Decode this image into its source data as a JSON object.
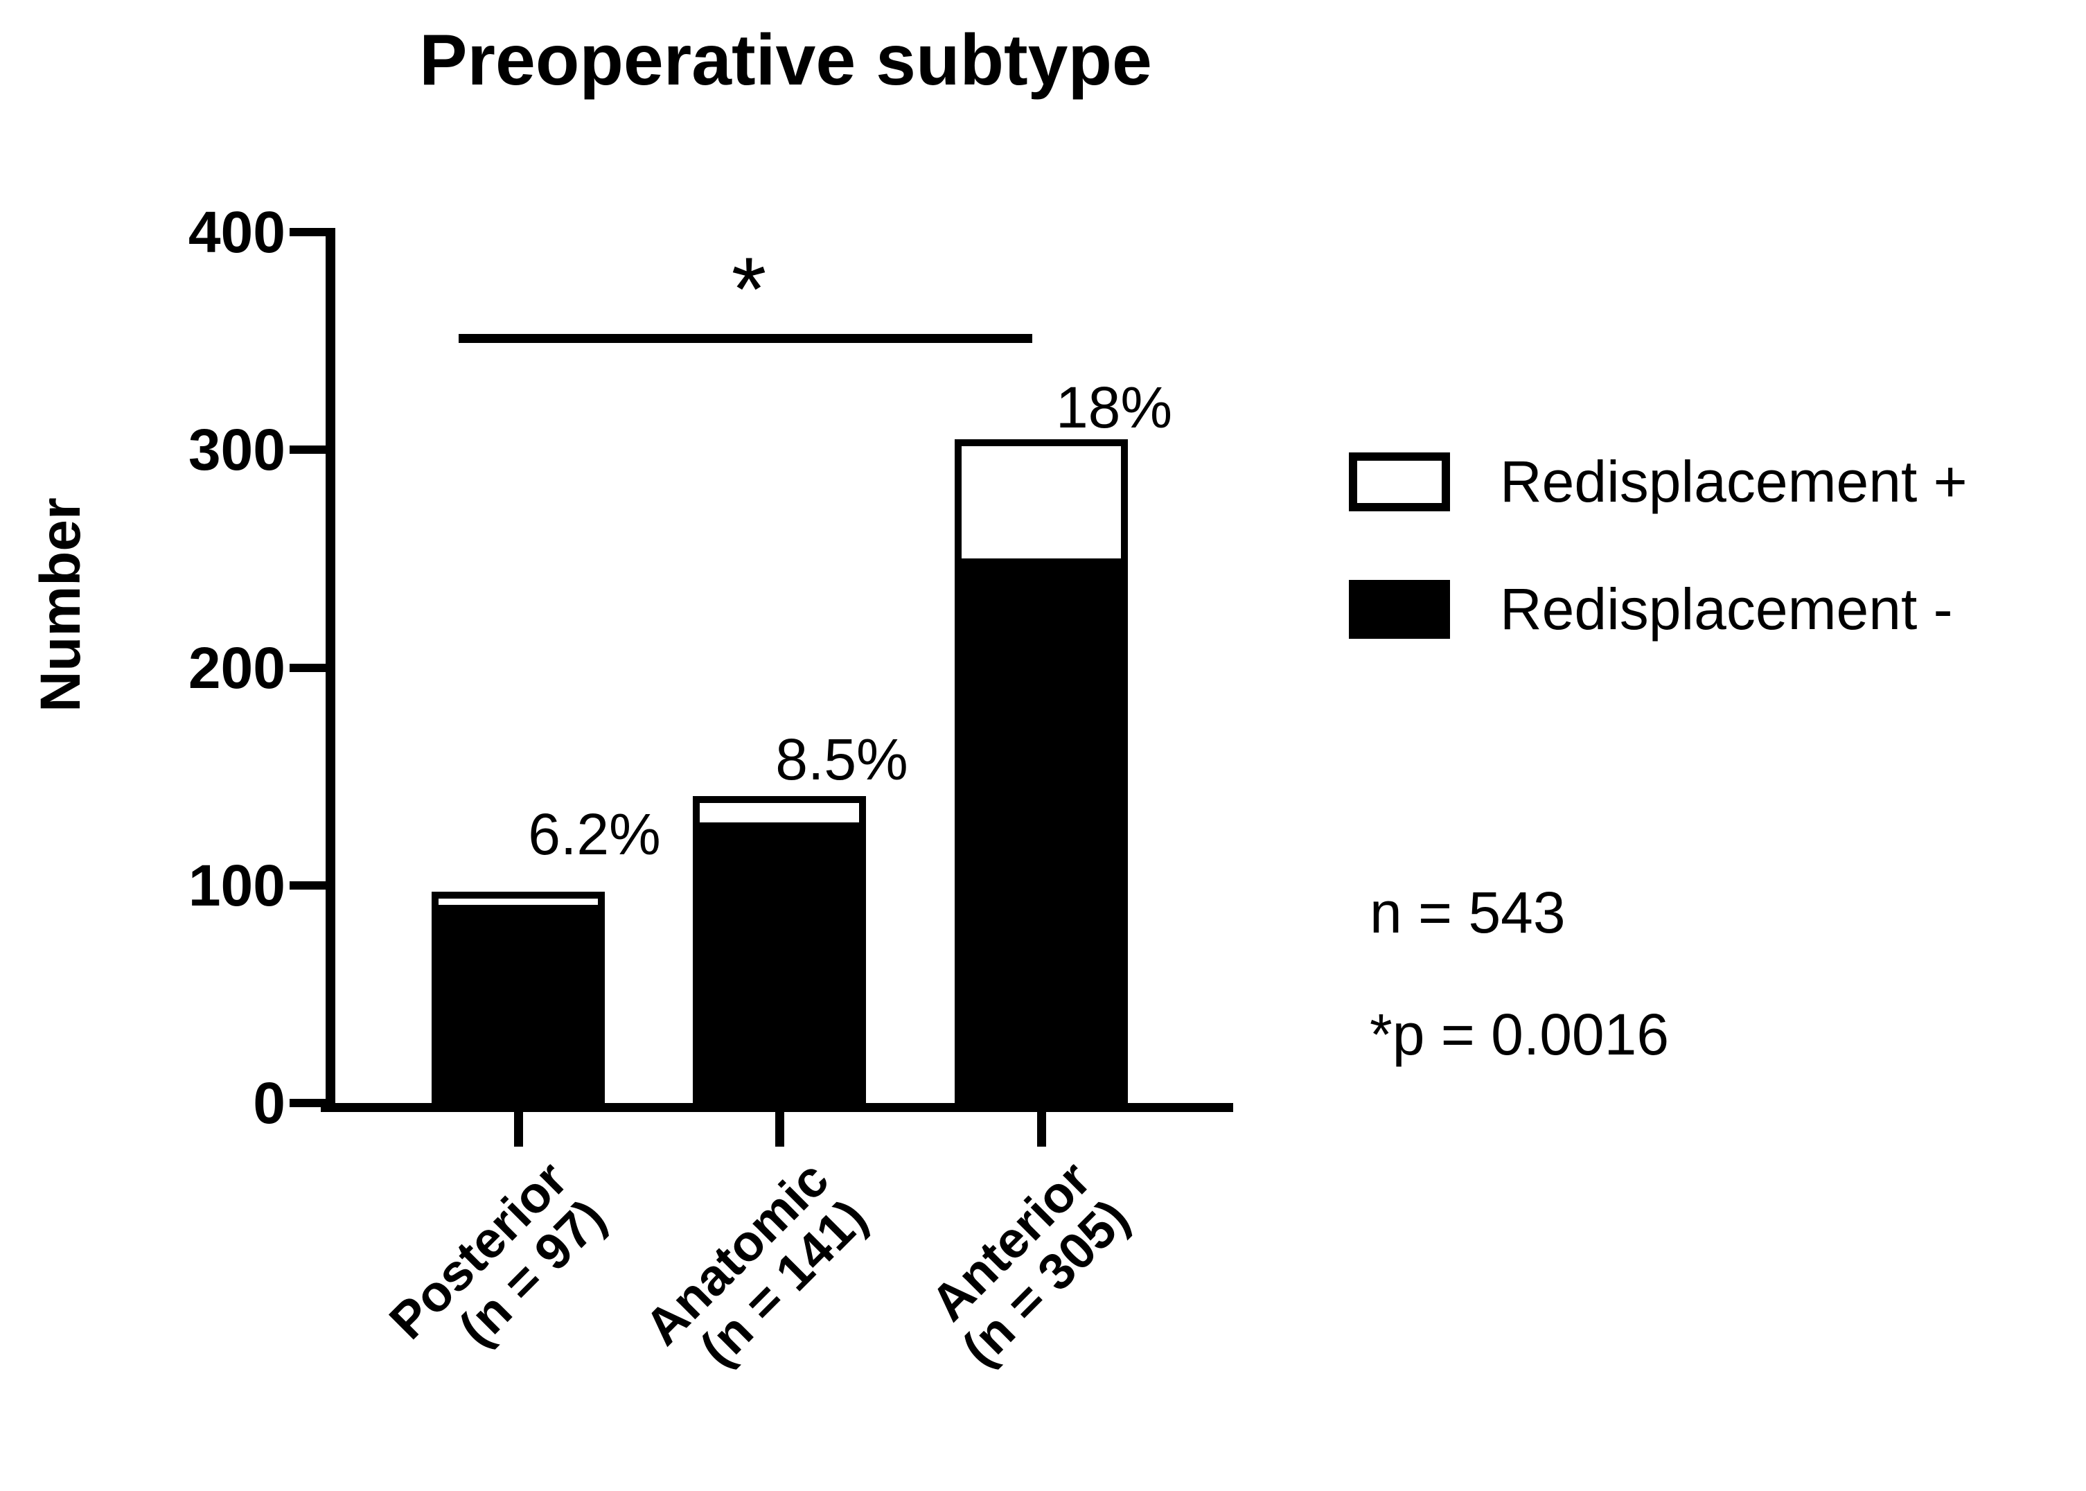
{
  "title": "Preoperative subtype",
  "y_axis": {
    "label": "Number",
    "ticks_top_down": [
      400,
      300,
      200,
      100,
      0
    ]
  },
  "legend": [
    {
      "label": "Redisplacement +",
      "fill": "#ffffff"
    },
    {
      "label": "Redisplacement -",
      "fill": "#000000"
    }
  ],
  "stats": {
    "n_text": "n = 543",
    "p_text": "*p = 0.0016"
  },
  "chart_data": {
    "type": "bar",
    "stacked": true,
    "title": "Preoperative subtype",
    "ylabel": "Number",
    "ylim": [
      0,
      400
    ],
    "yticks": [
      400,
      300,
      200,
      100,
      0
    ],
    "grid": false,
    "legend_position": "right",
    "categories": [
      [
        "Posterior",
        "(n = 97)"
      ],
      [
        "Anatomic",
        "(n = 141)"
      ],
      [
        "Anterior",
        "(n = 305)"
      ]
    ],
    "totals": [
      97,
      141,
      305
    ],
    "series": [
      {
        "name": "Redisplacement -",
        "color": "#000000",
        "values": [
          91,
          129,
          250
        ]
      },
      {
        "name": "Redisplacement +",
        "color": "#ffffff",
        "values": [
          6,
          12,
          55
        ]
      }
    ],
    "percent_labels": [
      "6.2%",
      "8.5%",
      "18%"
    ],
    "significance_label": "*",
    "significance_note_p": "*p = 0.0016",
    "n_total_label": "n = 543"
  }
}
